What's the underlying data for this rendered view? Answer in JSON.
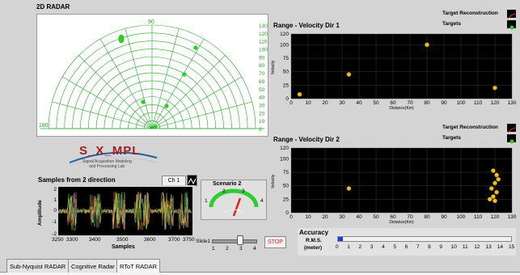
{
  "radar": {
    "title": "2D RADAR",
    "arc_labels": [
      "130",
      "120",
      "110",
      "100",
      "90",
      "80",
      "70",
      "60",
      "50",
      "40",
      "30",
      "20",
      "10",
      "0"
    ],
    "angle_labels": {
      "top": "90",
      "left": "180"
    }
  },
  "logo": {
    "name": "S_X_MPL",
    "line1": "Signal Acquisition Modeling",
    "line2": "and Processing Lab"
  },
  "samples": {
    "title": "Samples from 2 direction",
    "channel": "Ch 1",
    "ylabel": "Amplitude",
    "xlabel": "Samples",
    "yticks": [
      "2",
      "1",
      "0",
      "-1",
      "-2"
    ],
    "xticks": [
      "3250",
      "3300",
      "3400",
      "3500",
      "3600",
      "3700",
      "3750"
    ]
  },
  "scenario": {
    "label": "Scenario 2",
    "scale": [
      "1",
      "2",
      "3",
      "4"
    ],
    "value": 3
  },
  "slider": {
    "label": "Slide1",
    "ticks": [
      "1",
      "2",
      "3",
      "4"
    ],
    "value": 3
  },
  "stop_label": "STOP",
  "accuracy": {
    "title": "Accuracy",
    "sub1": "R.M.S.",
    "sub2": "(meter)",
    "ticks": [
      "0",
      "1",
      "2",
      "3",
      "4",
      "5",
      "6",
      "7",
      "8",
      "9",
      "10",
      "11",
      "12",
      "13",
      "14",
      "15"
    ],
    "value": 0.4
  },
  "legend1": {
    "recon": "Target Reconstruction",
    "targets": "Targets"
  },
  "legend2": {
    "recon": "Target Reconstruction",
    "targets": "Targets"
  },
  "chart_data": [
    {
      "type": "scatter",
      "title": "Range - Velocity Dir 1",
      "xlabel": "Distance(Km)",
      "ylabel": "Velocity",
      "xlim": [
        0,
        130
      ],
      "ylim": [
        0,
        120
      ],
      "xticks": [
        "0",
        "10",
        "20",
        "30",
        "40",
        "50",
        "60",
        "70",
        "80",
        "90",
        "100",
        "110",
        "120",
        "130"
      ],
      "yticks": [
        "120",
        "100",
        "75",
        "50",
        "25",
        "0"
      ],
      "points": [
        [
          5,
          8
        ],
        [
          34,
          45
        ],
        [
          80,
          100
        ],
        [
          120,
          20
        ]
      ]
    },
    {
      "type": "scatter",
      "title": "Range - Velocity Dir 2",
      "xlabel": "Distance(Km)",
      "ylabel": "Velocity",
      "xlim": [
        0,
        130
      ],
      "ylim": [
        0,
        120
      ],
      "xticks": [
        "0",
        "10",
        "20",
        "30",
        "40",
        "50",
        "60",
        "70",
        "80",
        "90",
        "100",
        "110",
        "120",
        "130"
      ],
      "yticks": [
        "120",
        "100",
        "75",
        "50",
        "25",
        "0"
      ],
      "points": [
        [
          34,
          45
        ],
        [
          119,
          78
        ],
        [
          121,
          70
        ],
        [
          122,
          62
        ],
        [
          120,
          55
        ],
        [
          118,
          45
        ],
        [
          121,
          38
        ],
        [
          119,
          30
        ],
        [
          117,
          25
        ],
        [
          120,
          22
        ]
      ]
    }
  ],
  "tabs": [
    "Sub-Nyquist RADAR",
    "Cognitive Radar",
    "RToT RADAR"
  ],
  "colors": {
    "grid": "#22aa22",
    "dot": "#f0c018",
    "panel": "#ffffff",
    "background": "#d4d4d4"
  }
}
